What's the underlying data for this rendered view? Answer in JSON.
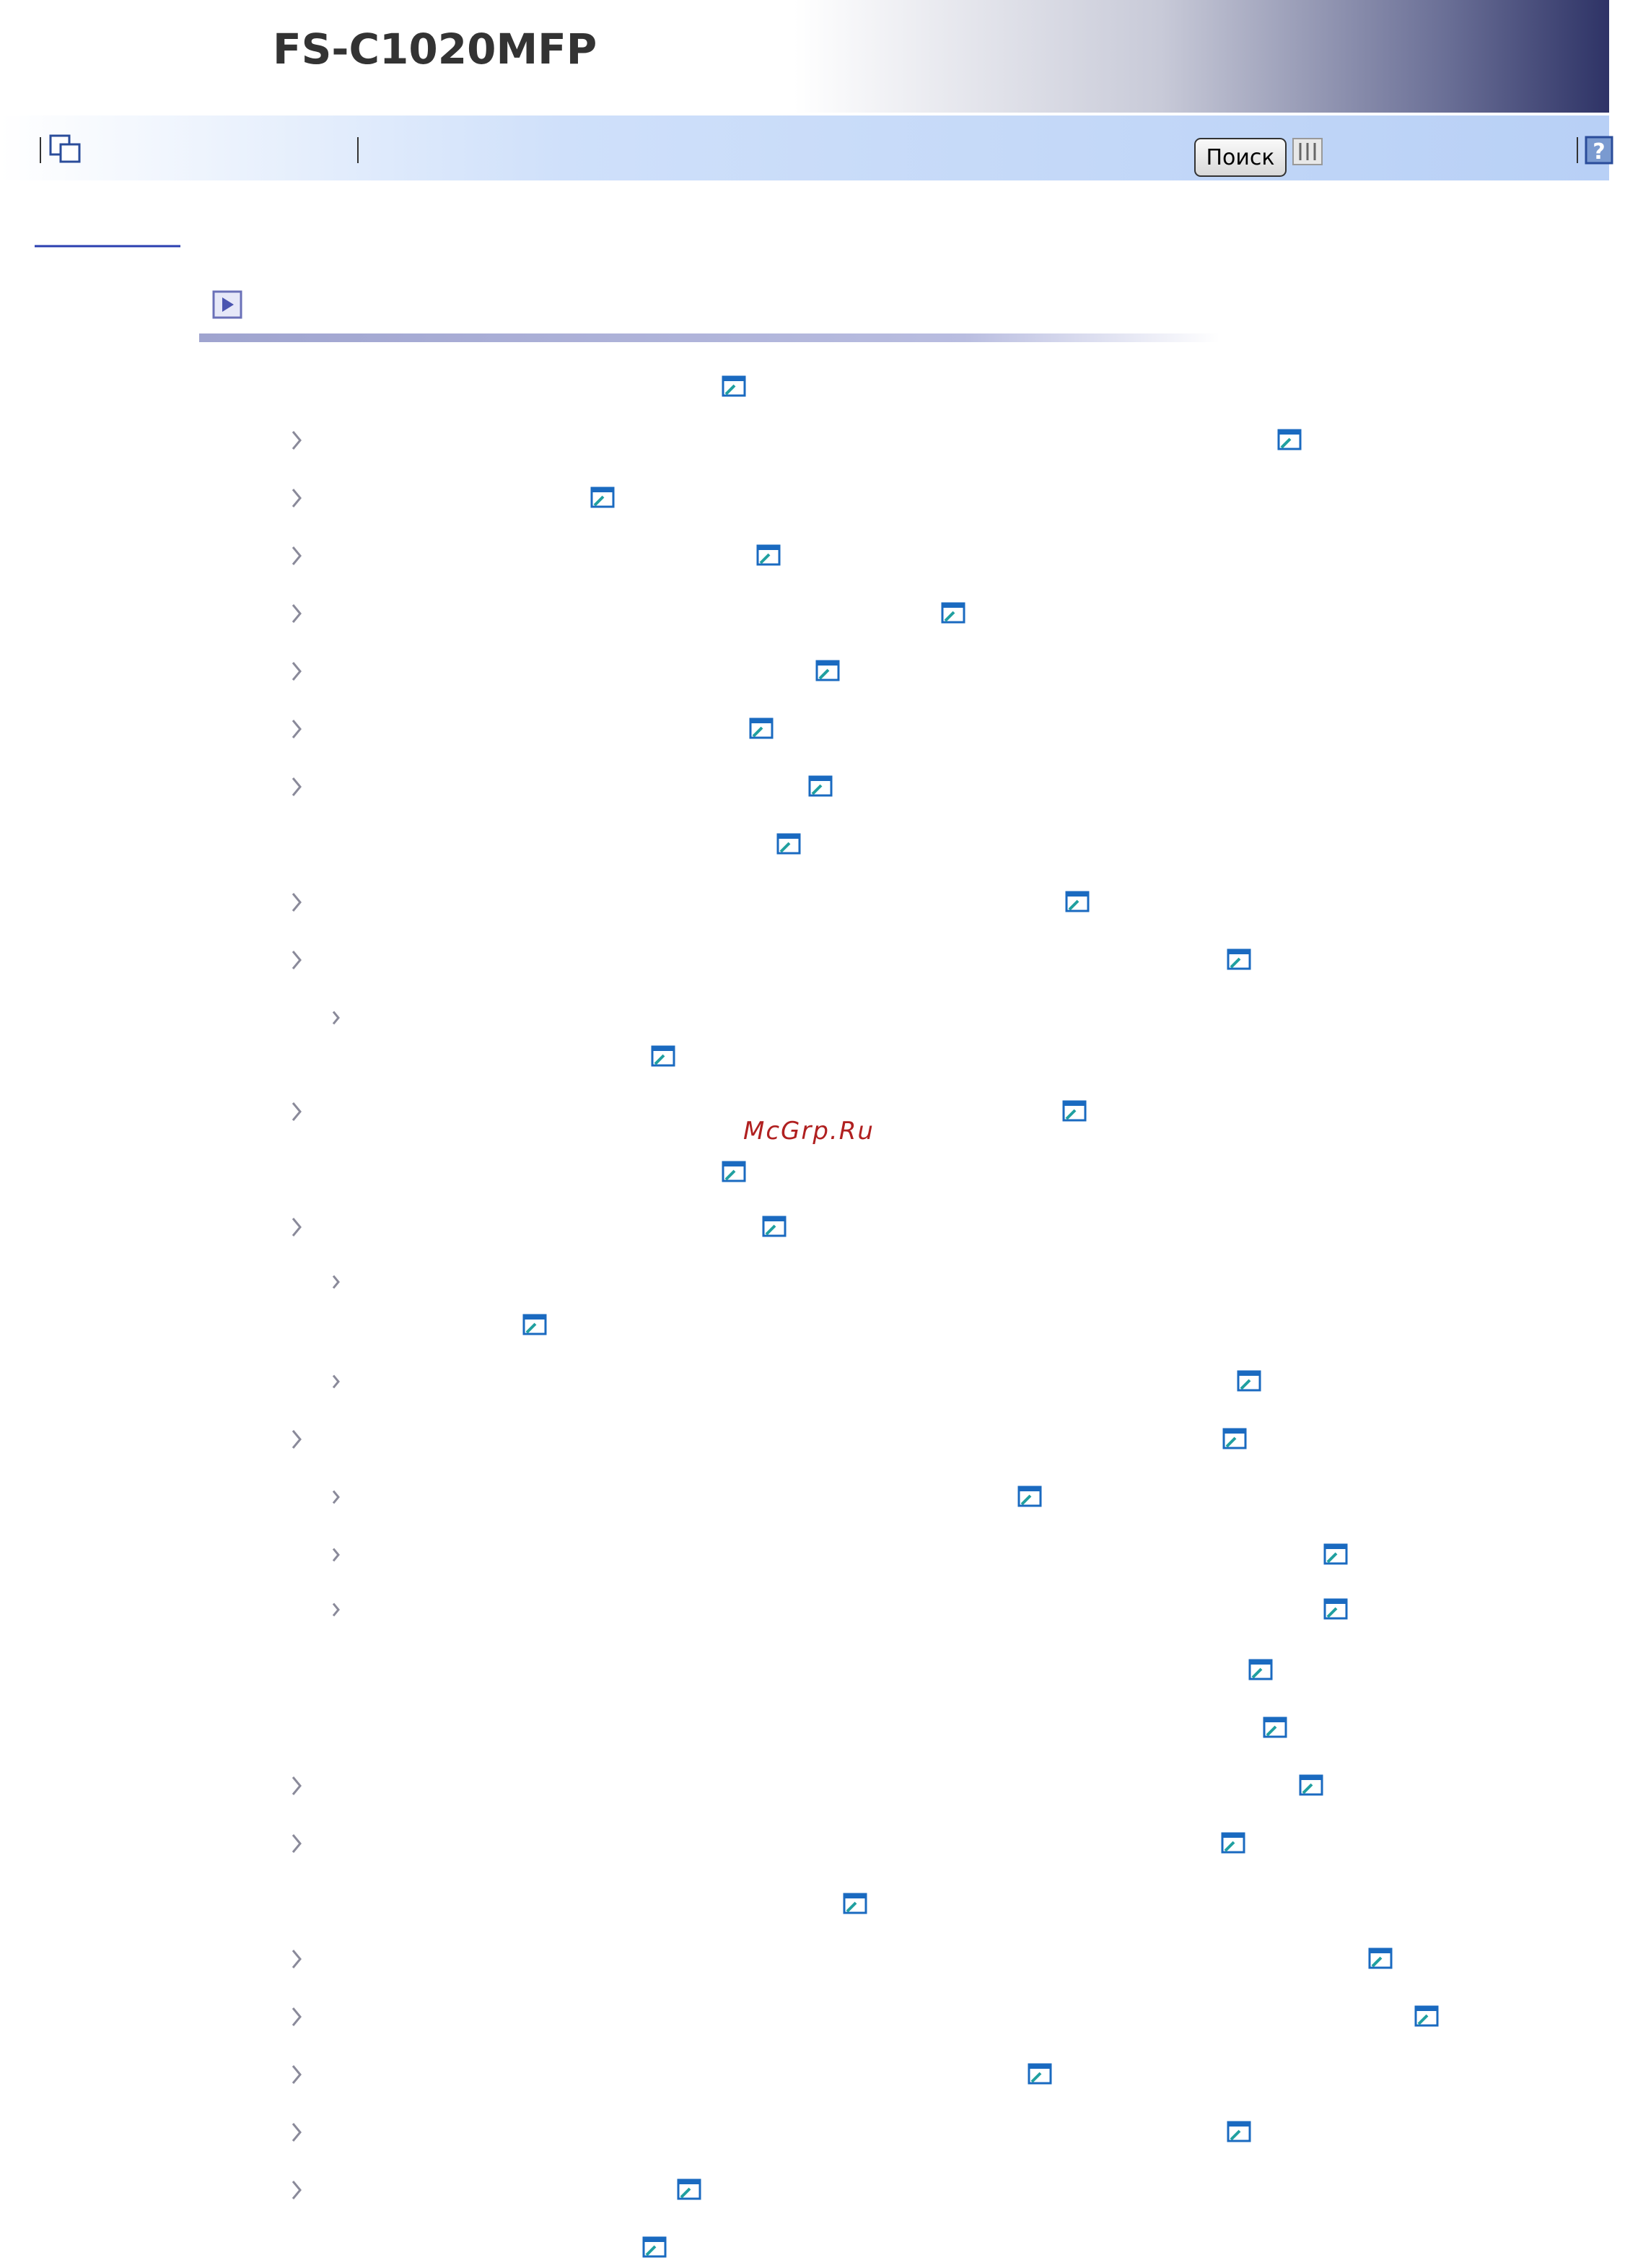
{
  "header": {
    "title": "FS-C1020MFP"
  },
  "toolbar": {
    "search_button": "Поиск"
  },
  "watermark": "McGrp.Ru"
}
